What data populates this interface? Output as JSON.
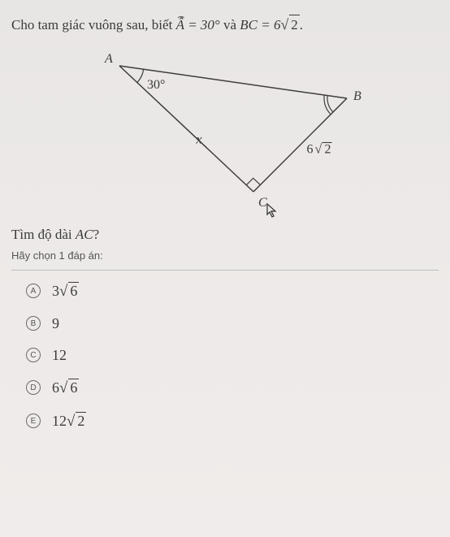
{
  "problem": {
    "prefix": "Cho tam giác vuông sau, biết ",
    "angle_var": "Â",
    "angle_eq": " = 30° ",
    "mid": "và ",
    "side_var": "BC",
    "side_eq": " = 6",
    "side_root": "2",
    "suffix": "."
  },
  "figure": {
    "A": "A",
    "B": "B",
    "C": "C",
    "angle_label": "30°",
    "side_x": "x",
    "side_bc_num": "6",
    "side_bc_root": "2",
    "stroke": "#3d3d3d",
    "stroke_width": 1.5,
    "pts": {
      "A": [
        60,
        30
      ],
      "B": [
        340,
        70
      ],
      "C": [
        225,
        185
      ]
    }
  },
  "question": {
    "prefix": "Tìm độ dài ",
    "var": "AC",
    "suffix": "?"
  },
  "instruction": "Hãy chọn 1 đáp án:",
  "options": [
    {
      "letter": "A",
      "coef": "3",
      "root": "6"
    },
    {
      "letter": "B",
      "coef": "9",
      "root": ""
    },
    {
      "letter": "C",
      "coef": "12",
      "root": ""
    },
    {
      "letter": "D",
      "coef": "6",
      "root": "6"
    },
    {
      "letter": "E",
      "coef": "12",
      "root": "2"
    }
  ],
  "cursor_glyph": "↖"
}
